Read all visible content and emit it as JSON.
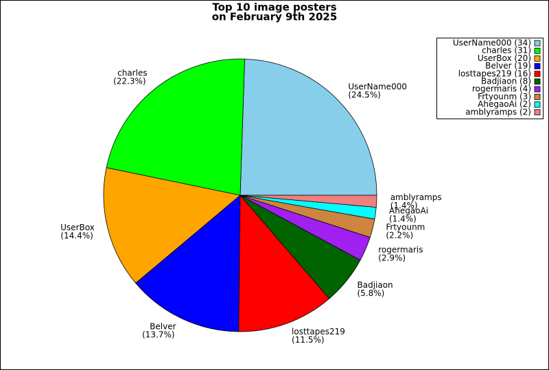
{
  "chart_data": {
    "type": "pie",
    "title_lines": [
      "Top 10 image posters",
      "on February 9th 2025"
    ],
    "categories": [
      "UserName000",
      "charles",
      "UserBox",
      "Belver",
      "losttapes219",
      "Badjiaon",
      "rogermaris",
      "Frtyounm",
      "AhegaoAi",
      "amblyramps"
    ],
    "values": [
      24.5,
      22.3,
      14.4,
      13.7,
      11.5,
      5.8,
      2.9,
      2.2,
      1.4,
      1.4
    ],
    "value_labels": [
      "(24.5%)",
      "(22.3%)",
      "(14.4%)",
      "(13.7%)",
      "(11.5%)",
      "(5.8%)",
      "(2.9%)",
      "(2.2%)",
      "(1.4%)",
      "(1.4%)"
    ],
    "legend_labels": [
      "UserName000 (34)",
      "charles (31)",
      "UserBox (20)",
      "Belver (19)",
      "losttapes219 (16)",
      "Badjiaon (8)",
      "rogermaris (4)",
      "Frtyounm (3)",
      "AhegaoAi (2)",
      "amblyramps (2)"
    ],
    "colors": [
      "#87ceeb",
      "#00ff00",
      "#ffa500",
      "#0000ff",
      "#ff0000",
      "#006400",
      "#a020f0",
      "#cd853f",
      "#00ffff",
      "#f08080"
    ],
    "legend": "upper right"
  }
}
